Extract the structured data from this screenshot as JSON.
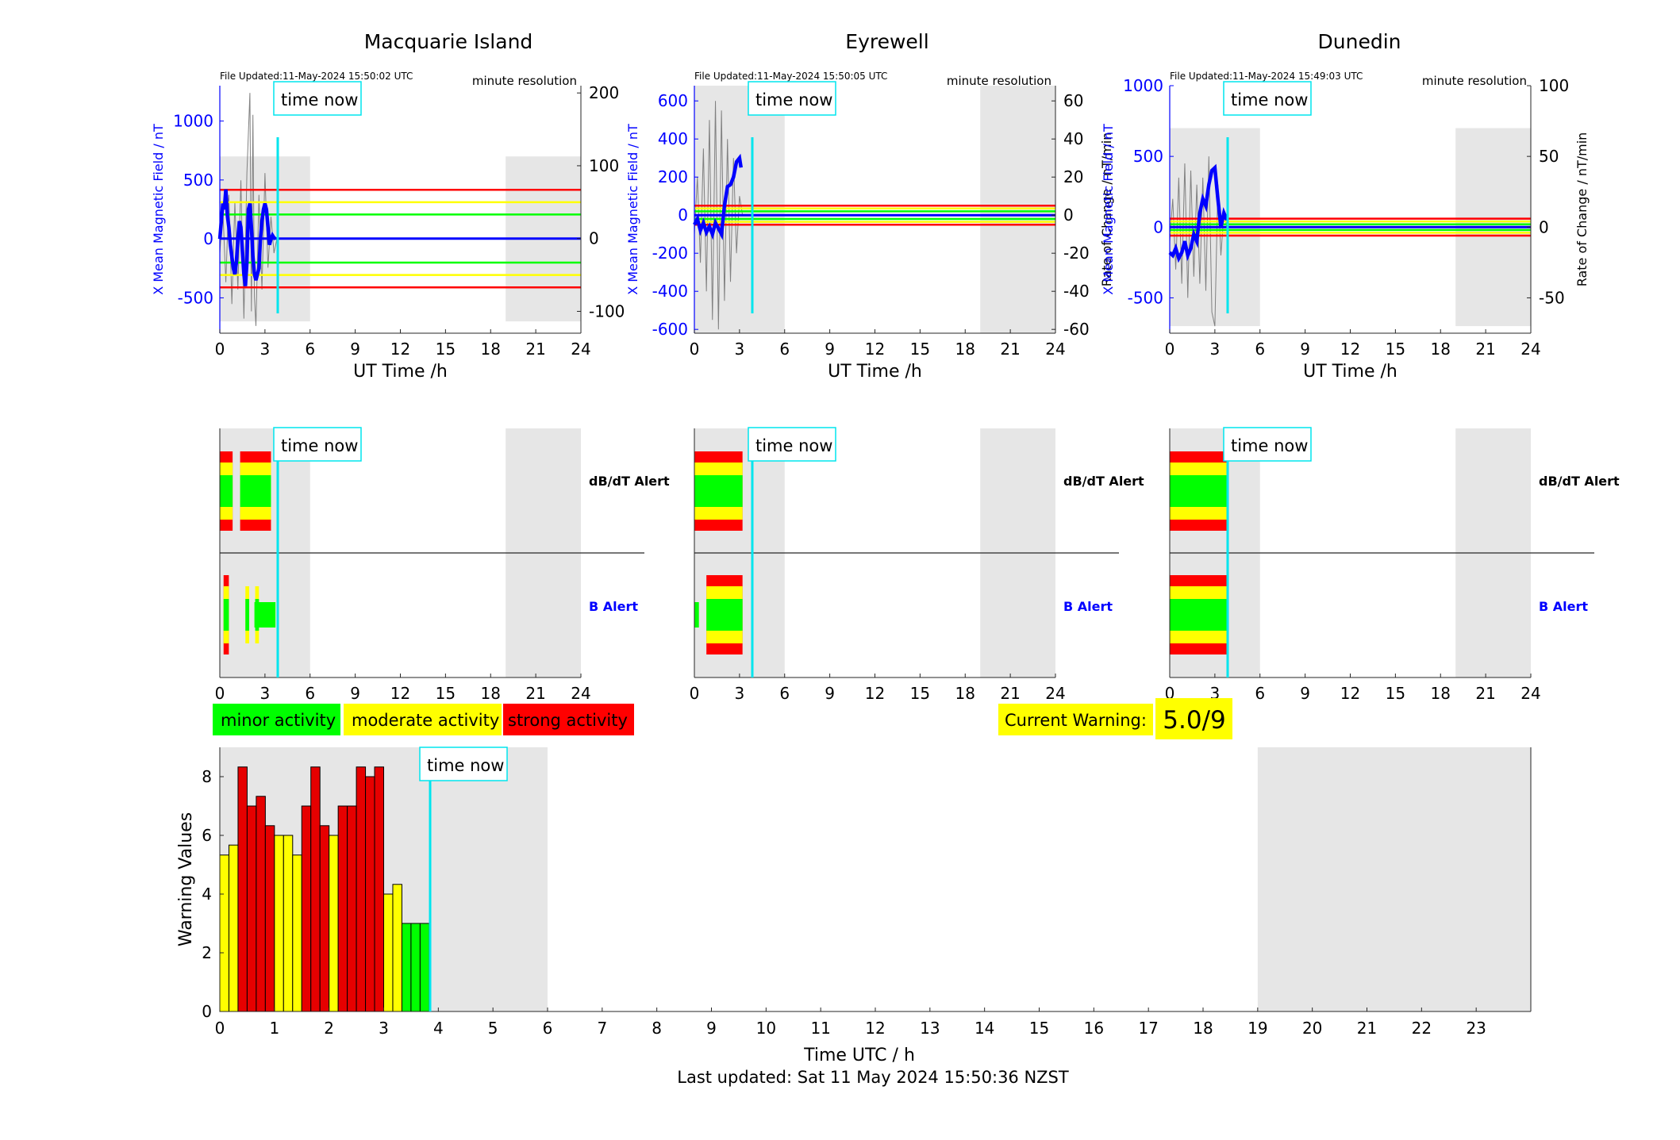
{
  "figure": {
    "footer": "Last updated: Sat 11 May 2024 15:50:36 NZST",
    "time_now_label": "time now",
    "minute_resolution_label": "minute resolution",
    "ut_axis_label": "UT Time /h",
    "db_alert_label": "dB/dT Alert",
    "b_alert_label": "B Alert",
    "current_warning_label": "Current Warning:",
    "current_warning_value": "5.0/9",
    "time_now_hour": 3.85,
    "night_shading": [
      [
        0,
        6
      ],
      [
        19,
        24
      ]
    ],
    "colors": {
      "field_line": "#0000ff",
      "rate_trace": "#808080",
      "time_now": "#00e5ee",
      "green": "#00ff00",
      "yellow": "#ffff00",
      "red": "#ff0000",
      "dark_red": "#e60000",
      "grid_shade": "#e6e6e6"
    }
  },
  "legend": [
    {
      "label": "minor activity",
      "color": "#00ff00"
    },
    {
      "label": "moderate activity",
      "color": "#ffff00"
    },
    {
      "label": "strong activity",
      "color": "#ff0000"
    }
  ],
  "chart_data": [
    {
      "type": "line",
      "title": "Macquarie Island",
      "file_updated": "File Updated:11-May-2024 15:50:02 UTC",
      "xlabel": "UT Time /h",
      "ylabel": "X Mean Magnetic Field / nT",
      "y2label": "",
      "xlim": [
        0,
        24
      ],
      "xticks": [
        0,
        3,
        6,
        9,
        12,
        15,
        18,
        21,
        24
      ],
      "ylim": [
        -800,
        1300
      ],
      "yticks": [
        -500,
        0,
        500,
        1000
      ],
      "y2lim": [
        -130,
        210
      ],
      "y2ticks": [
        -100,
        0,
        100,
        200
      ],
      "shade_y": [
        -700,
        700
      ],
      "thresholds_y2": [
        {
          "v": 67,
          "c": "red"
        },
        {
          "v": 50,
          "c": "yellow"
        },
        {
          "v": 33,
          "c": "green"
        },
        {
          "v": 0,
          "c": "blue"
        },
        {
          "v": -33,
          "c": "green"
        },
        {
          "v": -50,
          "c": "yellow"
        },
        {
          "v": -67,
          "c": "red"
        }
      ],
      "field_series": {
        "x": [
          0,
          0.1,
          0.2,
          0.3,
          0.4,
          0.5,
          0.6,
          0.7,
          0.8,
          0.9,
          1.0,
          1.1,
          1.2,
          1.3,
          1.4,
          1.5,
          1.6,
          1.7,
          1.8,
          1.9,
          2.0,
          2.1,
          2.2,
          2.3,
          2.4,
          2.5,
          2.6,
          2.7,
          2.8,
          2.9,
          3.0,
          3.1,
          3.2,
          3.3,
          3.4,
          3.5,
          3.6,
          3.7
        ],
        "y": [
          0,
          150,
          300,
          250,
          420,
          200,
          100,
          -50,
          -150,
          -250,
          -300,
          -200,
          0,
          150,
          100,
          -100,
          -300,
          -400,
          -200,
          250,
          300,
          100,
          -150,
          -300,
          -350,
          -300,
          -250,
          0,
          150,
          250,
          300,
          250,
          100,
          -50,
          0,
          30,
          10,
          0
        ]
      },
      "blue_baseline": {
        "x": [
          3.7,
          24
        ],
        "y": [
          0,
          0
        ]
      },
      "rate_series": {
        "x": [
          0,
          0.2,
          0.4,
          0.6,
          0.8,
          1.0,
          1.2,
          1.4,
          1.6,
          1.8,
          2.0,
          2.1,
          2.2,
          2.3,
          2.4,
          2.6,
          2.8,
          3.0,
          3.2,
          3.4,
          3.6,
          3.8
        ],
        "y": [
          -20,
          40,
          -60,
          60,
          -90,
          50,
          -70,
          80,
          -110,
          90,
          200,
          -100,
          170,
          -80,
          -120,
          60,
          -70,
          90,
          -40,
          30,
          -20,
          0
        ]
      }
    },
    {
      "type": "line",
      "title": "Eyrewell",
      "file_updated": "File Updated:11-May-2024 15:50:05 UTC",
      "xlabel": "UT Time /h",
      "ylabel": "X Mean Magnetic Field / nT",
      "y2label": "Rate of Change / nT/min",
      "xlim": [
        0,
        24
      ],
      "xticks": [
        0,
        3,
        6,
        9,
        12,
        15,
        18,
        21,
        24
      ],
      "ylim": [
        -620,
        680
      ],
      "yticks": [
        -600,
        -400,
        -200,
        0,
        200,
        400,
        600
      ],
      "y2lim": [
        -62,
        68
      ],
      "y2ticks": [
        -60,
        -40,
        -20,
        0,
        20,
        40,
        60
      ],
      "shade_y": [
        -620,
        680
      ],
      "thresholds_y2": [
        {
          "v": 5,
          "c": "red"
        },
        {
          "v": 3.5,
          "c": "yellow"
        },
        {
          "v": 2,
          "c": "green"
        },
        {
          "v": 0,
          "c": "blue"
        },
        {
          "v": -2,
          "c": "green"
        },
        {
          "v": -3.5,
          "c": "yellow"
        },
        {
          "v": -5,
          "c": "red"
        }
      ],
      "field_series": {
        "x": [
          0,
          0.2,
          0.4,
          0.6,
          0.8,
          1.0,
          1.2,
          1.4,
          1.6,
          1.8,
          2.0,
          2.2,
          2.4,
          2.6,
          2.8,
          3.0,
          3.1
        ],
        "y": [
          -50,
          -20,
          -80,
          -40,
          -90,
          -60,
          -100,
          -40,
          -70,
          -100,
          50,
          150,
          160,
          200,
          280,
          300,
          250
        ]
      },
      "blue_baseline": {
        "x": [
          3.1,
          24
        ],
        "y": [
          0,
          0
        ]
      },
      "rate_series": {
        "x": [
          0,
          0.2,
          0.4,
          0.6,
          0.8,
          1.0,
          1.2,
          1.4,
          1.6,
          1.8,
          2.0,
          2.2,
          2.4,
          2.6,
          2.8,
          3.0,
          3.2
        ],
        "y": [
          -10,
          20,
          -25,
          35,
          -40,
          50,
          -55,
          60,
          -60,
          55,
          -45,
          40,
          -35,
          30,
          -20,
          10,
          0
        ]
      }
    },
    {
      "type": "line",
      "title": "Dunedin",
      "file_updated": "File Updated:11-May-2024 15:49:03 UTC",
      "xlabel": "UT Time /h",
      "ylabel": "X Mean Magnetic Field / nT",
      "y2label": "Rate of Change / nT/min",
      "xlim": [
        0,
        24
      ],
      "xticks": [
        0,
        3,
        6,
        9,
        12,
        15,
        18,
        21,
        24
      ],
      "ylim": [
        -750,
        1000
      ],
      "yticks": [
        -500,
        0,
        500,
        1000
      ],
      "y2lim": [
        -75,
        100
      ],
      "y2ticks": [
        -50,
        0,
        50,
        100
      ],
      "shade_y": [
        -700,
        700
      ],
      "thresholds_y2": [
        {
          "v": 6,
          "c": "red"
        },
        {
          "v": 4,
          "c": "yellow"
        },
        {
          "v": 2,
          "c": "green"
        },
        {
          "v": 0,
          "c": "blue"
        },
        {
          "v": -2,
          "c": "green"
        },
        {
          "v": -4,
          "c": "yellow"
        },
        {
          "v": -6,
          "c": "red"
        }
      ],
      "field_series": {
        "x": [
          0,
          0.2,
          0.4,
          0.6,
          0.8,
          1.0,
          1.2,
          1.4,
          1.6,
          1.8,
          2.0,
          2.2,
          2.4,
          2.6,
          2.8,
          3.0,
          3.2,
          3.4,
          3.6,
          3.8
        ],
        "y": [
          -180,
          -200,
          -150,
          -220,
          -180,
          -100,
          -200,
          -150,
          -50,
          -100,
          100,
          200,
          150,
          300,
          400,
          420,
          200,
          0,
          100,
          50
        ]
      },
      "blue_baseline": {
        "x": [
          3.8,
          24
        ],
        "y": [
          0,
          0
        ]
      },
      "rate_series": {
        "x": [
          0,
          0.2,
          0.4,
          0.6,
          0.8,
          1.0,
          1.2,
          1.4,
          1.6,
          1.8,
          2.0,
          2.2,
          2.4,
          2.6,
          2.8,
          3.0,
          3.2,
          3.4,
          3.6,
          3.8
        ],
        "y": [
          -10,
          20,
          -30,
          35,
          -40,
          45,
          -50,
          40,
          -35,
          30,
          -40,
          35,
          -45,
          50,
          -60,
          -70,
          30,
          -20,
          10,
          0
        ]
      }
    },
    {
      "type": "bar",
      "panel": "alert-strips",
      "stations": [
        {
          "name": "Macquarie Island",
          "dbdt_segments": [
            [
              0,
              0.85,
              "red"
            ],
            [
              1.35,
              3.4,
              "red"
            ]
          ],
          "b_segments": [
            [
              0.25,
              0.6,
              "red"
            ],
            [
              1.7,
              1.95,
              "yellow"
            ],
            [
              2.35,
              2.6,
              "yellow"
            ],
            [
              2.3,
              3.7,
              "green"
            ]
          ]
        },
        {
          "name": "Eyrewell",
          "dbdt_segments": [
            [
              0,
              3.2,
              "red"
            ]
          ],
          "b_segments": [
            [
              0.8,
              3.2,
              "red"
            ],
            [
              0,
              0.3,
              "green"
            ]
          ]
        },
        {
          "name": "Dunedin",
          "dbdt_segments": [
            [
              0,
              3.8,
              "red"
            ]
          ],
          "b_segments": [
            [
              0,
              3.9,
              "red"
            ]
          ]
        }
      ]
    },
    {
      "type": "bar",
      "title": "",
      "xlabel": "Time UTC / h",
      "ylabel": "Warning Values",
      "xlim": [
        0,
        24
      ],
      "ylim": [
        0,
        9
      ],
      "xticks": [
        0,
        1,
        2,
        3,
        4,
        5,
        6,
        7,
        8,
        9,
        10,
        11,
        12,
        13,
        14,
        15,
        16,
        17,
        18,
        19,
        20,
        21,
        22,
        23
      ],
      "yticks": [
        0,
        2,
        4,
        6,
        8
      ],
      "bar_width_h": 0.1667,
      "x": [
        0,
        0.1667,
        0.3333,
        0.5,
        0.6667,
        0.8333,
        1.0,
        1.1667,
        1.3333,
        1.5,
        1.6667,
        1.8333,
        2.0,
        2.1667,
        2.3333,
        2.5,
        2.6667,
        2.8333,
        3.0,
        3.1667,
        3.3333,
        3.5,
        3.6667
      ],
      "values": [
        5.33,
        5.67,
        8.33,
        7.0,
        7.33,
        6.33,
        6.0,
        6.0,
        5.33,
        7.0,
        8.33,
        6.33,
        6.0,
        7.0,
        7.0,
        8.33,
        8.0,
        8.33,
        4.0,
        4.33,
        3.0,
        3.0,
        3.0
      ],
      "bar_colors": [
        "yellow",
        "yellow",
        "red",
        "red",
        "red",
        "red",
        "yellow",
        "yellow",
        "yellow",
        "red",
        "red",
        "red",
        "yellow",
        "red",
        "red",
        "red",
        "red",
        "red",
        "yellow",
        "yellow",
        "green",
        "green",
        "green"
      ],
      "shade": [
        [
          0,
          6
        ],
        [
          19,
          24
        ]
      ]
    }
  ]
}
